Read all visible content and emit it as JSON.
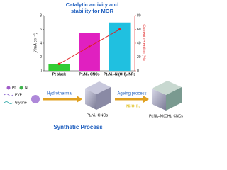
{
  "chart_data": {
    "type": "bar",
    "title": [
      "Catalytic activity and",
      "stability for MOR"
    ],
    "ylabel": "j/(mA cm⁻²)",
    "y2label": "Current retention (%)",
    "categories": [
      "Pt black",
      "Pt₁Ni₁ CNCs",
      "Pt₁Ni₁-Ni(OH)₂ NPs"
    ],
    "series": [
      {
        "type": "bar",
        "colors": [
          "#33cc33",
          "#e020c0",
          "#20c0e0"
        ],
        "values": [
          1,
          5.5,
          7
        ]
      },
      {
        "type": "line",
        "axis": "y2",
        "color": "#e02020",
        "values": [
          10,
          35,
          60
        ]
      }
    ],
    "ylim": [
      0,
      8
    ],
    "yticks": [
      0,
      2,
      4,
      6,
      8
    ],
    "y2lim": [
      0,
      80
    ],
    "y2ticks": [
      0,
      20,
      40,
      60,
      80
    ]
  },
  "legend": {
    "pt": "Pt",
    "ni": "Ni",
    "pvp": "PVP",
    "glycine": "Glycine"
  },
  "process": {
    "step1": "Hydrothermal",
    "product1": "Pt₁Ni₁ CNCs",
    "step2": "Ageing process",
    "reagent2": "Ni(OH)₂",
    "product2": "Pt₁Ni₁–Ni(OH)₂ CNCs",
    "title": "Synthetic Process"
  }
}
